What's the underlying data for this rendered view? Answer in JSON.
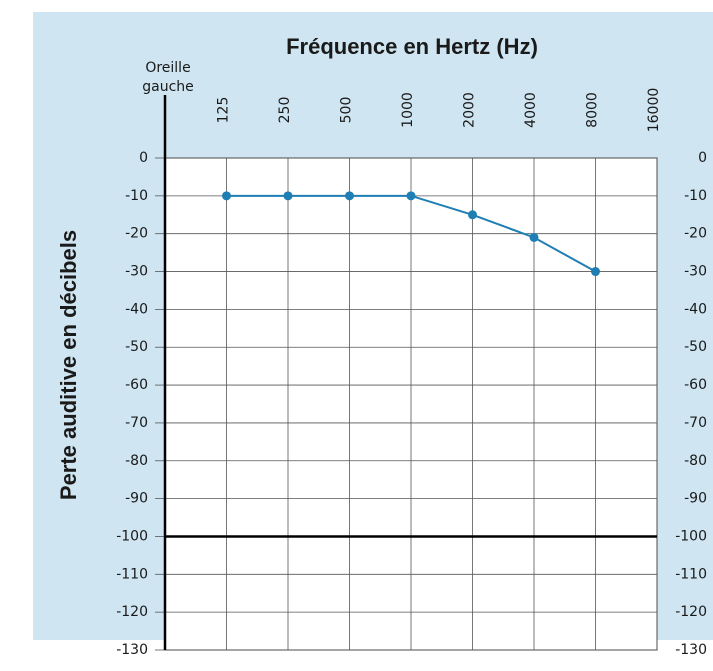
{
  "chart_data": {
    "type": "line",
    "title": "Fréquence en Hertz (Hz)",
    "ear_label": [
      "Oreille",
      "gauche"
    ],
    "ylabel": "Perte auditive en décibels",
    "categories": [
      "125",
      "250",
      "500",
      "1000",
      "2000",
      "4000",
      "8000",
      "16000"
    ],
    "series": [
      {
        "name": "Oreille gauche",
        "color": "#1f7fb4",
        "values": [
          -10,
          -10,
          -10,
          -10,
          -15,
          -21,
          -30,
          null
        ]
      }
    ],
    "ylim": [
      -130,
      0
    ],
    "yticks": [
      0,
      -10,
      -20,
      -30,
      -40,
      -50,
      -60,
      -70,
      -80,
      -90,
      -100,
      -110,
      -120,
      -130
    ],
    "reference_line": -100,
    "grid": true
  }
}
